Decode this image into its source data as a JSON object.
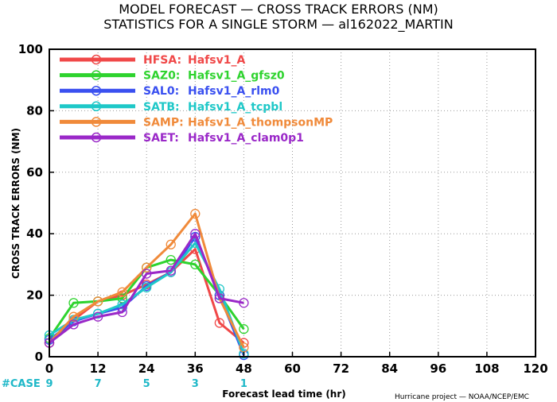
{
  "title_line1": "MODEL FORECAST — CROSS TRACK ERRORS (NM)",
  "title_line2": "STATISTICS FOR A SINGLE STORM — al162022_MARTIN",
  "credit": "Hurricane project — NOAA/NCEP/EMC",
  "case_label": "#CASE",
  "colors": {
    "case": "#1fb8c8",
    "grid": "#9a9a9a",
    "axis": "#000000"
  },
  "chart_data": {
    "type": "line",
    "xlabel": "Forecast lead time (hr)",
    "ylabel": "CROSS TRACK ERRORS (NM)",
    "xlim": [
      0,
      120
    ],
    "ylim": [
      0,
      100
    ],
    "xticks": [
      "0",
      "12",
      "24",
      "36",
      "48",
      "60",
      "72",
      "84",
      "96",
      "108",
      "120"
    ],
    "yticks": [
      "0",
      "20",
      "40",
      "60",
      "80",
      "100"
    ],
    "grid": true,
    "legend_position": "top-left",
    "x": [
      0,
      6,
      12,
      18,
      24,
      30,
      36,
      42,
      48
    ],
    "cases": [
      {
        "x": 0,
        "label": "9"
      },
      {
        "x": 12,
        "label": "7"
      },
      {
        "x": 24,
        "label": "5"
      },
      {
        "x": 36,
        "label": "3"
      },
      {
        "x": 48,
        "label": "1"
      }
    ],
    "series": [
      {
        "name": "HFSA:",
        "desc": "Hafsv1_A",
        "color": "#f04848",
        "values": [
          4.5,
          12,
          18,
          20,
          23.5,
          27.5,
          35,
          11,
          4.5
        ]
      },
      {
        "name": "SAZ0:",
        "desc": "Hafsv1_A_gfsz0",
        "color": "#2ed32e",
        "values": [
          6,
          17.5,
          18,
          19,
          29,
          31.5,
          30,
          20,
          9
        ]
      },
      {
        "name": "SAL0:",
        "desc": "Hafsv1_A_rlm0",
        "color": "#3a50f0",
        "values": [
          5.5,
          11.5,
          14,
          16,
          23,
          27.5,
          39,
          20,
          0.5
        ]
      },
      {
        "name": "SATB:",
        "desc": "Hafsv1_A_tcpbl",
        "color": "#1fc8c8",
        "values": [
          7,
          12,
          14,
          17,
          22.5,
          27.5,
          37,
          22,
          1
        ]
      },
      {
        "name": "SAMP:",
        "desc": "Hafsv1_A_thompsonMP",
        "color": "#f08a3a",
        "values": [
          4.5,
          13,
          18,
          21,
          29,
          36.5,
          46.5,
          19,
          3
        ]
      },
      {
        "name": "SAET:",
        "desc": "Hafsv1_A_clam0p1",
        "color": "#9a28c8",
        "values": [
          4.5,
          10.5,
          13,
          14.5,
          27,
          28,
          40,
          19,
          17.5
        ]
      }
    ]
  }
}
